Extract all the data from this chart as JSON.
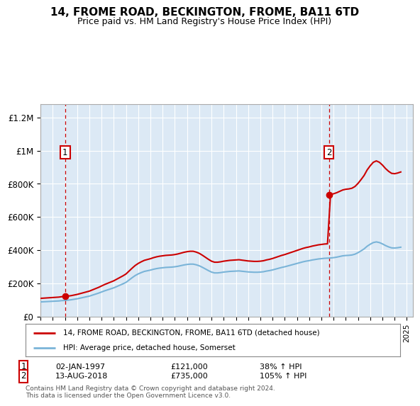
{
  "title": "14, FROME ROAD, BECKINGTON, FROME, BA11 6TD",
  "subtitle": "Price paid vs. HM Land Registry's House Price Index (HPI)",
  "ylabel_ticks": [
    "£0",
    "£200K",
    "£400K",
    "£600K",
    "£800K",
    "£1M",
    "£1.2M"
  ],
  "ytick_values": [
    0,
    200000,
    400000,
    600000,
    800000,
    1000000,
    1200000
  ],
  "ylim": [
    0,
    1280000
  ],
  "xlim_start": 1995.0,
  "xlim_end": 2025.5,
  "sale1_date": 1997.02,
  "sale1_price": 121000,
  "sale2_date": 2018.62,
  "sale2_price": 735000,
  "legend_line1": "14, FROME ROAD, BECKINGTON, FROME, BA11 6TD (detached house)",
  "legend_line2": "HPI: Average price, detached house, Somerset",
  "annotation1_label": "1",
  "annotation1_date": "02-JAN-1997",
  "annotation1_price": "£121,000",
  "annotation1_pct": "38% ↑ HPI",
  "annotation2_label": "2",
  "annotation2_date": "13-AUG-2018",
  "annotation2_price": "£735,000",
  "annotation2_pct": "105% ↑ HPI",
  "footer": "Contains HM Land Registry data © Crown copyright and database right 2024.\nThis data is licensed under the Open Government Licence v3.0.",
  "hpi_color": "#7ab4d8",
  "sale_color": "#cc0000",
  "dashed_line_color": "#cc0000",
  "hpi_data_x": [
    1995.0,
    1995.25,
    1995.5,
    1995.75,
    1996.0,
    1996.25,
    1996.5,
    1996.75,
    1997.0,
    1997.25,
    1997.5,
    1997.75,
    1998.0,
    1998.25,
    1998.5,
    1998.75,
    1999.0,
    1999.25,
    1999.5,
    1999.75,
    2000.0,
    2000.25,
    2000.5,
    2000.75,
    2001.0,
    2001.25,
    2001.5,
    2001.75,
    2002.0,
    2002.25,
    2002.5,
    2002.75,
    2003.0,
    2003.25,
    2003.5,
    2003.75,
    2004.0,
    2004.25,
    2004.5,
    2004.75,
    2005.0,
    2005.25,
    2005.5,
    2005.75,
    2006.0,
    2006.25,
    2006.5,
    2006.75,
    2007.0,
    2007.25,
    2007.5,
    2007.75,
    2008.0,
    2008.25,
    2008.5,
    2008.75,
    2009.0,
    2009.25,
    2009.5,
    2009.75,
    2010.0,
    2010.25,
    2010.5,
    2010.75,
    2011.0,
    2011.25,
    2011.5,
    2011.75,
    2012.0,
    2012.25,
    2012.5,
    2012.75,
    2013.0,
    2013.25,
    2013.5,
    2013.75,
    2014.0,
    2014.25,
    2014.5,
    2014.75,
    2015.0,
    2015.25,
    2015.5,
    2015.75,
    2016.0,
    2016.25,
    2016.5,
    2016.75,
    2017.0,
    2017.25,
    2017.5,
    2017.75,
    2018.0,
    2018.25,
    2018.5,
    2018.75,
    2019.0,
    2019.25,
    2019.5,
    2019.75,
    2020.0,
    2020.25,
    2020.5,
    2020.75,
    2021.0,
    2021.25,
    2021.5,
    2021.75,
    2022.0,
    2022.25,
    2022.5,
    2022.75,
    2023.0,
    2023.25,
    2023.5,
    2023.75,
    2024.0,
    2024.25,
    2024.5
  ],
  "hpi_data_y": [
    88000,
    89000,
    90000,
    91000,
    92000,
    93000,
    94000,
    96000,
    97000,
    99000,
    101000,
    104000,
    107000,
    111000,
    115000,
    119000,
    123000,
    129000,
    135000,
    141000,
    148000,
    155000,
    161000,
    167000,
    173000,
    181000,
    189000,
    197000,
    206000,
    220000,
    234000,
    247000,
    257000,
    265000,
    272000,
    276000,
    280000,
    285000,
    289000,
    292000,
    294000,
    296000,
    297000,
    298000,
    300000,
    303000,
    307000,
    311000,
    314000,
    316000,
    316000,
    312000,
    306000,
    297000,
    287000,
    277000,
    268000,
    263000,
    263000,
    265000,
    268000,
    270000,
    272000,
    273000,
    274000,
    275000,
    273000,
    271000,
    269000,
    268000,
    267000,
    267000,
    268000,
    270000,
    274000,
    277000,
    281000,
    286000,
    291000,
    296000,
    300000,
    305000,
    310000,
    315000,
    320000,
    325000,
    330000,
    334000,
    337000,
    341000,
    344000,
    347000,
    349000,
    351000,
    352000,
    353000,
    355000,
    358000,
    362000,
    366000,
    368000,
    369000,
    371000,
    376000,
    385000,
    396000,
    408000,
    424000,
    436000,
    446000,
    450000,
    446000,
    438000,
    428000,
    420000,
    414000,
    413000,
    415000,
    418000
  ]
}
